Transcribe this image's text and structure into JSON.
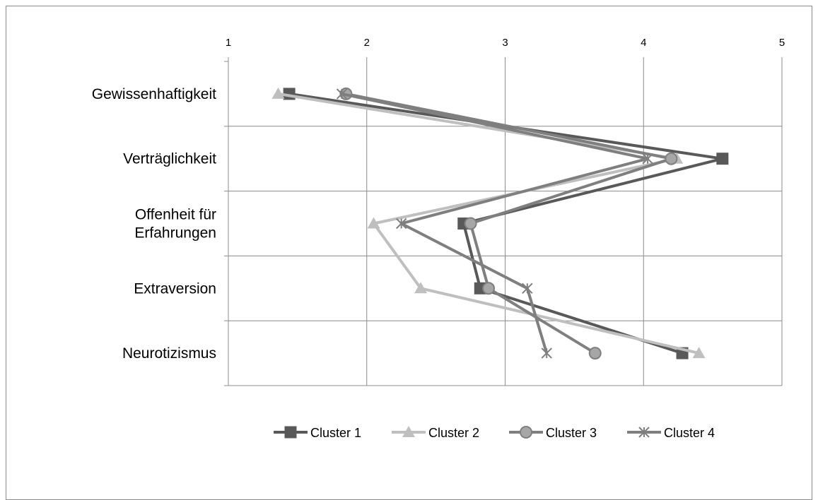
{
  "chart_data": {
    "type": "line",
    "orientation": "horizontal",
    "x_axis_position": "top",
    "xlim": [
      1,
      5
    ],
    "x_ticks": [
      "1",
      "2",
      "3",
      "4",
      "5"
    ],
    "grid": true,
    "legend_position": "bottom",
    "categories": [
      [
        "Gewissenhaftigkeit"
      ],
      [
        "Verträglichkeit"
      ],
      [
        "Offenheit für",
        "Erfahrungen"
      ],
      [
        "Extraversion"
      ],
      [
        "Neurotizismus"
      ]
    ],
    "series": [
      {
        "name": "Cluster 1",
        "marker": "square",
        "color": "#595959",
        "values": [
          1.44,
          4.57,
          2.7,
          2.82,
          4.28
        ]
      },
      {
        "name": "Cluster 2",
        "marker": "triangle",
        "color": "#bfbfbf",
        "values": [
          1.36,
          4.24,
          2.05,
          2.39,
          4.4
        ]
      },
      {
        "name": "Cluster 3",
        "marker": "circle",
        "color": "#7f7f7f",
        "values": [
          1.85,
          4.2,
          2.75,
          2.88,
          3.65
        ]
      },
      {
        "name": "Cluster 4",
        "marker": "star",
        "color": "#7f7f7f",
        "values": [
          1.82,
          4.03,
          2.25,
          3.16,
          3.3
        ]
      }
    ]
  }
}
